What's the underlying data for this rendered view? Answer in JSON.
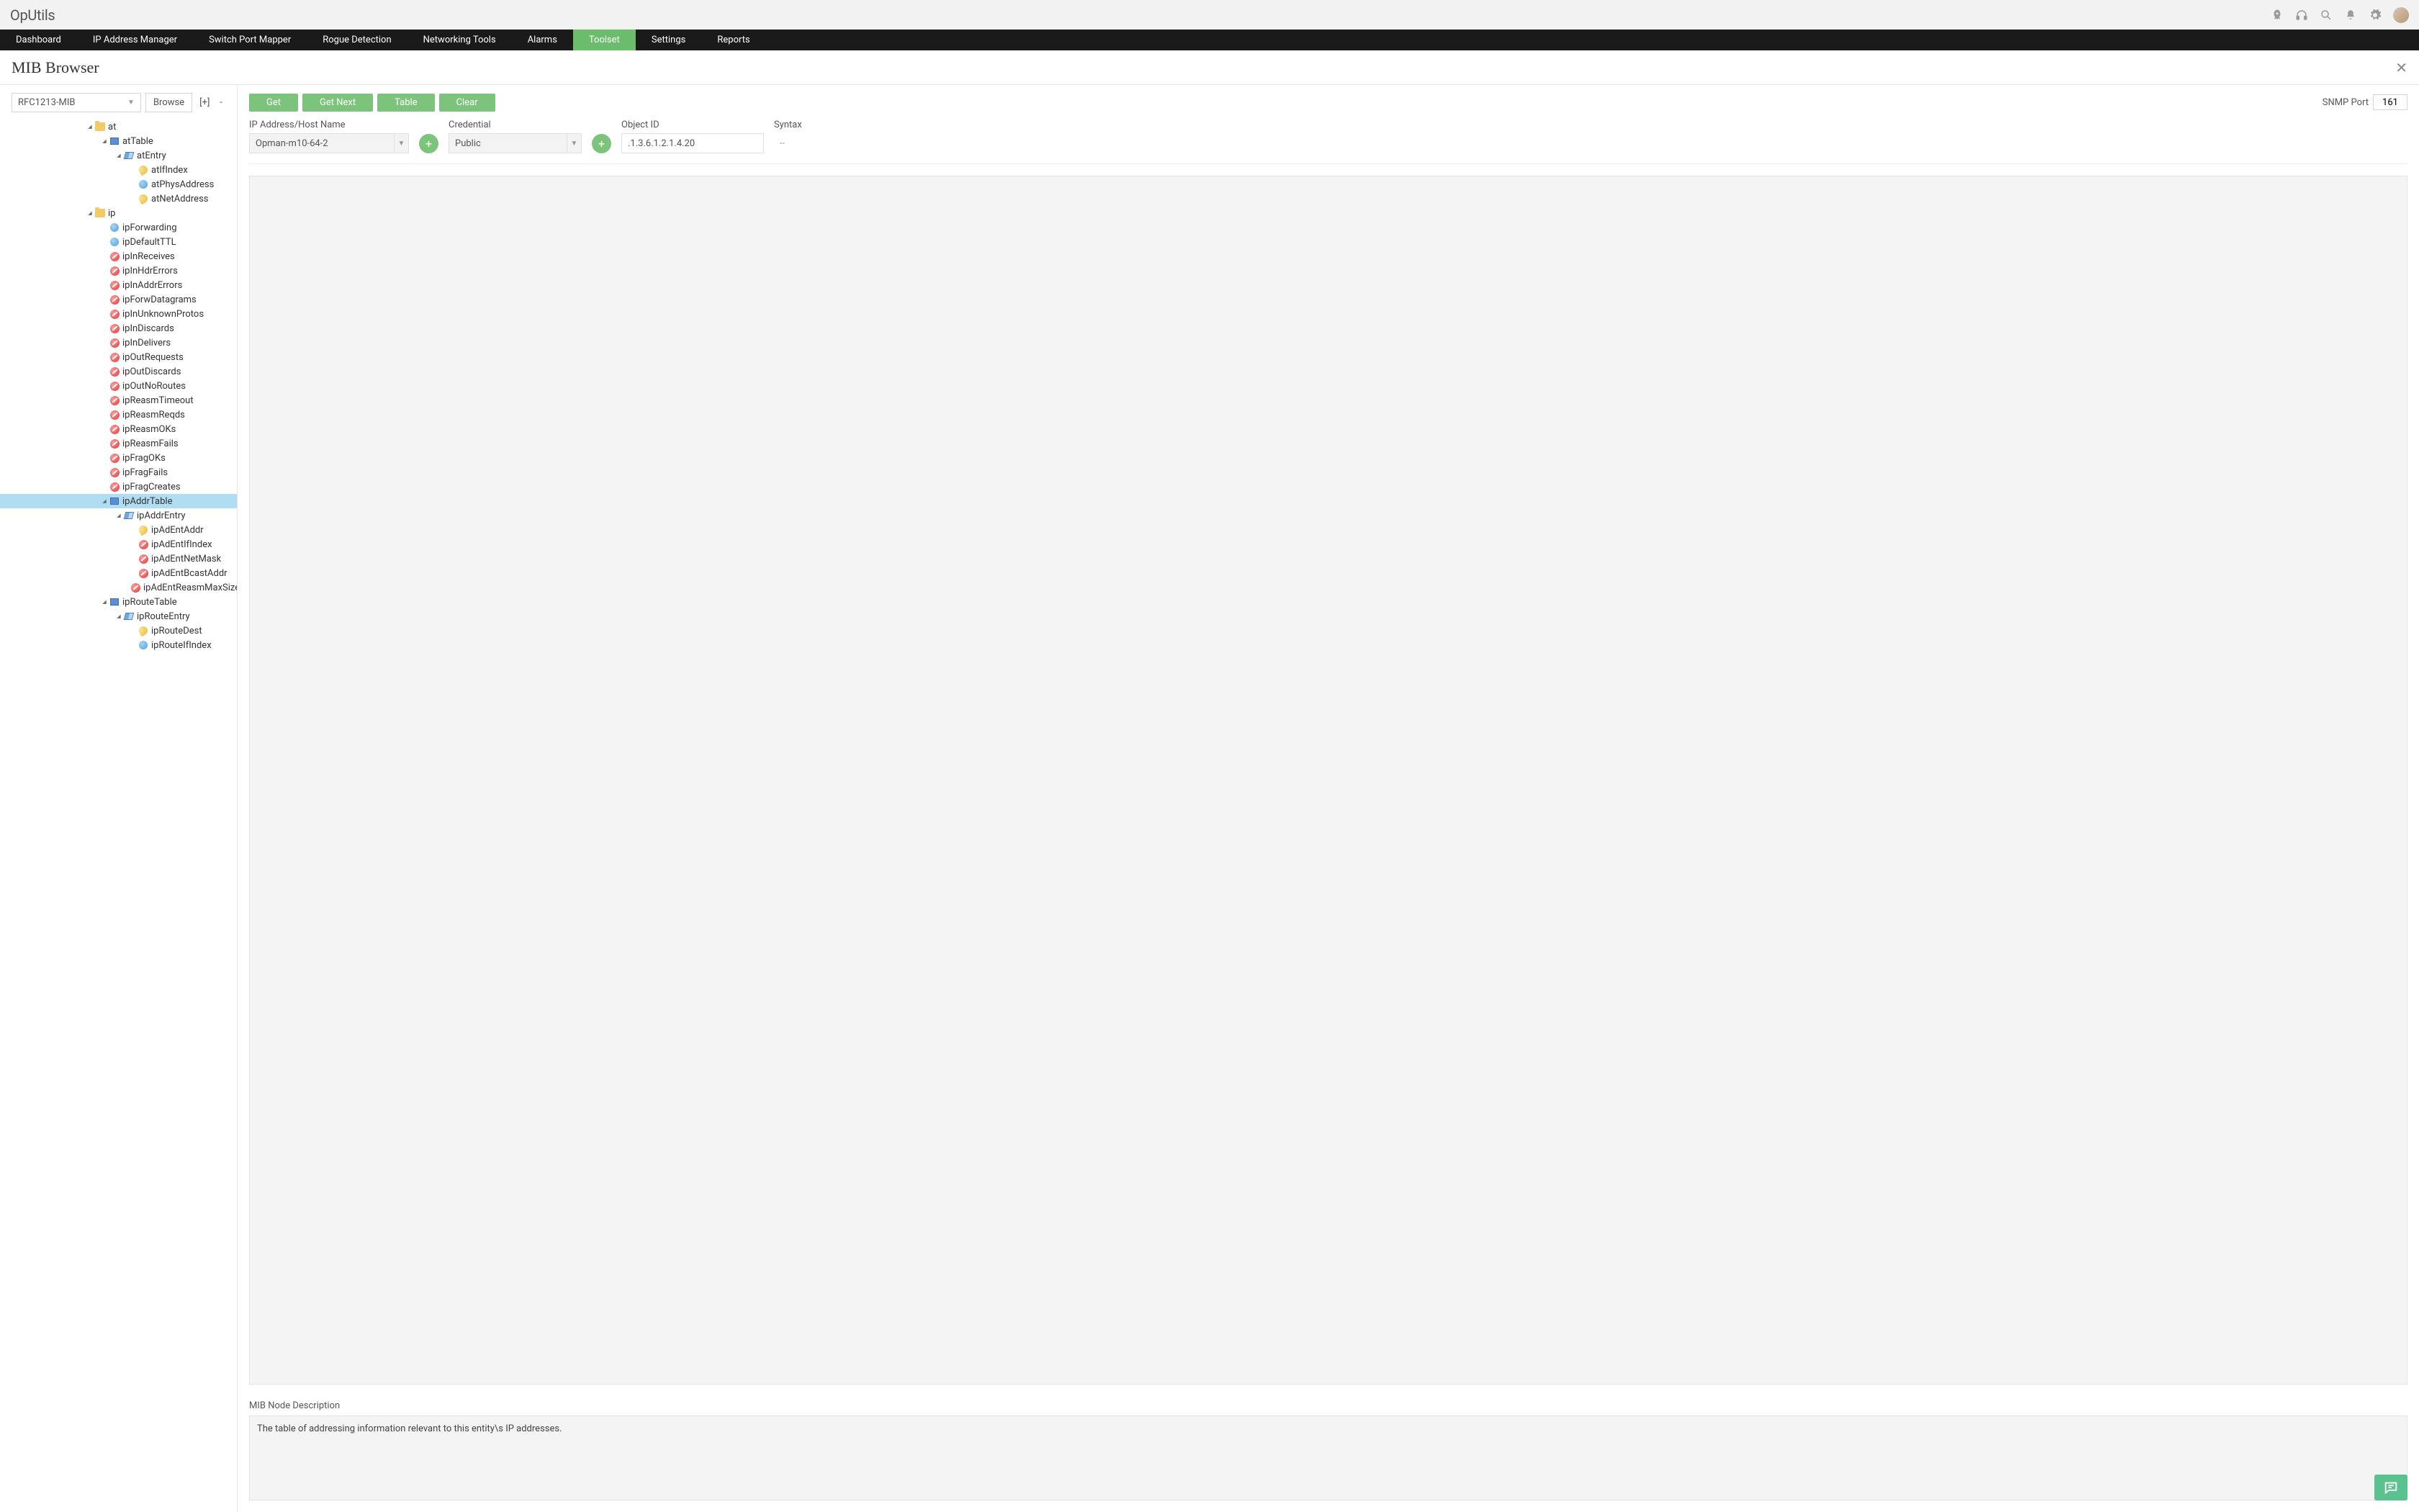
{
  "brand": "OpUtils",
  "nav": {
    "items": [
      "Dashboard",
      "IP Address Manager",
      "Switch Port Mapper",
      "Rogue Detection",
      "Networking Tools",
      "Alarms",
      "Toolset",
      "Settings",
      "Reports"
    ],
    "active_index": 6
  },
  "page": {
    "title": "MIB Browser"
  },
  "mib": {
    "selected": "RFC1213-MIB",
    "browse_label": "Browse",
    "expand_label": "[+]",
    "collapse_label": "-"
  },
  "actions": {
    "get": "Get",
    "get_next": "Get Next",
    "table": "Table",
    "clear": "Clear",
    "snmp_port_label": "SNMP Port",
    "snmp_port_value": "161"
  },
  "fields": {
    "ip_label": "IP Address/Host Name",
    "ip_value": "Opman-m10-64-2",
    "cred_label": "Credential",
    "cred_value": "Public",
    "oid_label": "Object ID",
    "oid_value": ".1.3.6.1.2.1.4.20",
    "syntax_label": "Syntax",
    "syntax_value": "--"
  },
  "description": {
    "label": "MIB Node Description",
    "text": "The table of addressing information relevant to this entity\\s IP addresses."
  },
  "tree": [
    {
      "depth": 6,
      "toggle": "▾",
      "icon": "folder",
      "label": "at"
    },
    {
      "depth": 7,
      "toggle": "▾",
      "icon": "table",
      "label": "atTable"
    },
    {
      "depth": 8,
      "toggle": "▾",
      "icon": "entry",
      "label": "atEntry"
    },
    {
      "depth": 9,
      "toggle": "",
      "icon": "key",
      "label": "atIfIndex"
    },
    {
      "depth": 9,
      "toggle": "",
      "icon": "blue",
      "label": "atPhysAddress"
    },
    {
      "depth": 9,
      "toggle": "",
      "icon": "key",
      "label": "atNetAddress"
    },
    {
      "depth": 6,
      "toggle": "▾",
      "icon": "folder",
      "label": "ip"
    },
    {
      "depth": 7,
      "toggle": "",
      "icon": "blue",
      "label": "ipForwarding"
    },
    {
      "depth": 7,
      "toggle": "",
      "icon": "blue",
      "label": "ipDefaultTTL"
    },
    {
      "depth": 7,
      "toggle": "",
      "icon": "red",
      "label": "ipInReceives"
    },
    {
      "depth": 7,
      "toggle": "",
      "icon": "red",
      "label": "ipInHdrErrors"
    },
    {
      "depth": 7,
      "toggle": "",
      "icon": "red",
      "label": "ipInAddrErrors"
    },
    {
      "depth": 7,
      "toggle": "",
      "icon": "red",
      "label": "ipForwDatagrams"
    },
    {
      "depth": 7,
      "toggle": "",
      "icon": "red",
      "label": "ipInUnknownProtos"
    },
    {
      "depth": 7,
      "toggle": "",
      "icon": "red",
      "label": "ipInDiscards"
    },
    {
      "depth": 7,
      "toggle": "",
      "icon": "red",
      "label": "ipInDelivers"
    },
    {
      "depth": 7,
      "toggle": "",
      "icon": "red",
      "label": "ipOutRequests"
    },
    {
      "depth": 7,
      "toggle": "",
      "icon": "red",
      "label": "ipOutDiscards"
    },
    {
      "depth": 7,
      "toggle": "",
      "icon": "red",
      "label": "ipOutNoRoutes"
    },
    {
      "depth": 7,
      "toggle": "",
      "icon": "red",
      "label": "ipReasmTimeout"
    },
    {
      "depth": 7,
      "toggle": "",
      "icon": "red",
      "label": "ipReasmReqds"
    },
    {
      "depth": 7,
      "toggle": "",
      "icon": "red",
      "label": "ipReasmOKs"
    },
    {
      "depth": 7,
      "toggle": "",
      "icon": "red",
      "label": "ipReasmFails"
    },
    {
      "depth": 7,
      "toggle": "",
      "icon": "red",
      "label": "ipFragOKs"
    },
    {
      "depth": 7,
      "toggle": "",
      "icon": "red",
      "label": "ipFragFails"
    },
    {
      "depth": 7,
      "toggle": "",
      "icon": "red",
      "label": "ipFragCreates"
    },
    {
      "depth": 7,
      "toggle": "▾",
      "icon": "table",
      "label": "ipAddrTable",
      "selected": true
    },
    {
      "depth": 8,
      "toggle": "▾",
      "icon": "entry",
      "label": "ipAddrEntry"
    },
    {
      "depth": 9,
      "toggle": "",
      "icon": "key",
      "label": "ipAdEntAddr"
    },
    {
      "depth": 9,
      "toggle": "",
      "icon": "red",
      "label": "ipAdEntIfIndex"
    },
    {
      "depth": 9,
      "toggle": "",
      "icon": "red",
      "label": "ipAdEntNetMask"
    },
    {
      "depth": 9,
      "toggle": "",
      "icon": "red",
      "label": "ipAdEntBcastAddr"
    },
    {
      "depth": 9,
      "toggle": "",
      "icon": "red",
      "label": "ipAdEntReasmMaxSize"
    },
    {
      "depth": 7,
      "toggle": "▾",
      "icon": "table",
      "label": "ipRouteTable"
    },
    {
      "depth": 8,
      "toggle": "▾",
      "icon": "entry",
      "label": "ipRouteEntry"
    },
    {
      "depth": 9,
      "toggle": "",
      "icon": "key",
      "label": "ipRouteDest"
    },
    {
      "depth": 9,
      "toggle": "",
      "icon": "blue",
      "label": "ipRouteIfIndex"
    }
  ],
  "colors": {
    "accent_green": "#7cc47c",
    "nav_bg": "#1a1a1a",
    "selection": "#b0ddf1",
    "chat": "#59c28e"
  }
}
